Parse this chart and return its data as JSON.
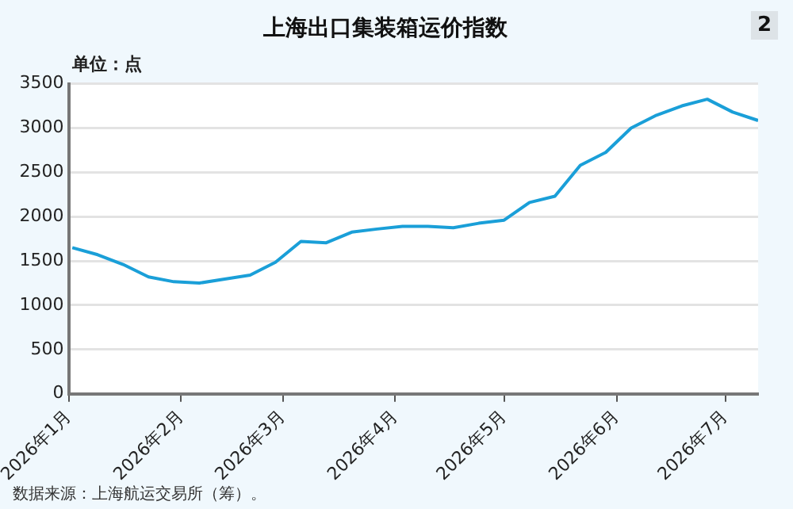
{
  "chart_data": {
    "type": "line",
    "title": "上海出口集装箱运价指数",
    "ylabel": "单位：点",
    "annotations": [
      "2",
      "数据来源：上海航运交易所（筹）。"
    ],
    "x": [
      "2026-01-02",
      "2026-01-09",
      "2026-01-16",
      "2026-01-23",
      "2026-01-30",
      "2026-02-06",
      "2026-02-13",
      "2026-02-20",
      "2026-02-27",
      "2026-03-06",
      "2026-03-13",
      "2026-03-20",
      "2026-03-27",
      "2026-04-03",
      "2026-04-10",
      "2026-04-17",
      "2026-04-24",
      "2026-05-01",
      "2026-05-08",
      "2026-05-15",
      "2026-05-22",
      "2026-05-29",
      "2026-06-05",
      "2026-06-12",
      "2026-06-19",
      "2026-06-26",
      "2026-07-03",
      "2026-07-10"
    ],
    "series": [
      {
        "color": "#1a9fd8",
        "values": [
          1650,
          1570,
          1460,
          1320,
          1265,
          1250,
          1295,
          1340,
          1485,
          1720,
          1705,
          1825,
          1860,
          1890,
          1890,
          1875,
          1925,
          1960,
          2160,
          2230,
          2580,
          2725,
          3000,
          3145,
          3250,
          3325,
          3180,
          3085
        ]
      }
    ],
    "xlim": [
      "2026-01-01",
      "2026-07-10"
    ],
    "xticks": [
      {
        "value": "2026-01-01",
        "label": "2026年1月"
      },
      {
        "value": "2026-02-01",
        "label": "2026年2月"
      },
      {
        "value": "2026-03-01",
        "label": "2026年3月"
      },
      {
        "value": "2026-04-01",
        "label": "2026年4月"
      },
      {
        "value": "2026-05-01",
        "label": "2026年5月"
      },
      {
        "value": "2026-06-01",
        "label": "2026年6月"
      },
      {
        "value": "2026-07-01",
        "label": "2026年7月"
      }
    ],
    "ylim": [
      0,
      3500
    ],
    "yticks": [
      0,
      500,
      1000,
      1500,
      2000,
      2500,
      3000,
      3500
    ],
    "grid": "y",
    "legend": false,
    "marker": "none",
    "line_style": "solid"
  }
}
